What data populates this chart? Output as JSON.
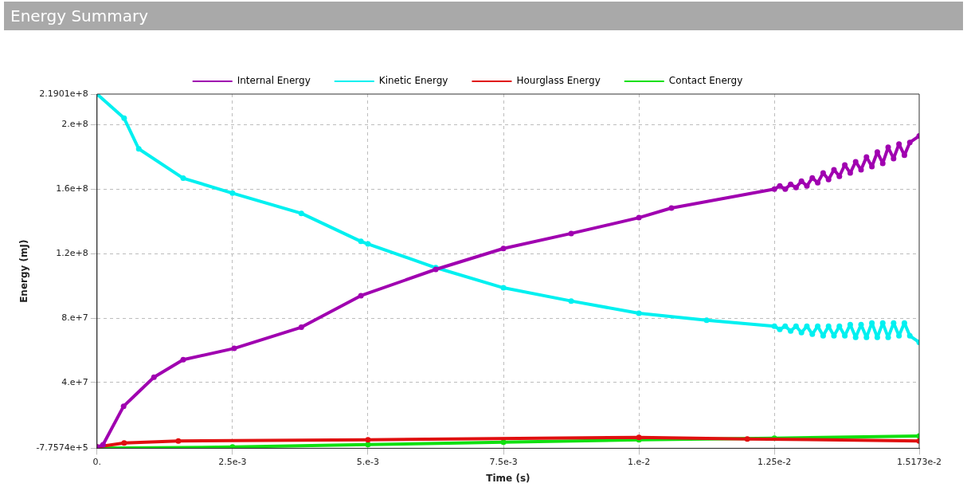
{
  "chart_data": {
    "type": "line",
    "title": "Energy Summary",
    "xlabel": "Time (s)",
    "ylabel": "Energy (mJ)",
    "xlim": [
      0,
      0.015173
    ],
    "ylim": [
      -775740,
      219010000
    ],
    "xticks": [
      {
        "value": 0,
        "label": "0."
      },
      {
        "value": 0.0025,
        "label": "2.5e-3"
      },
      {
        "value": 0.005,
        "label": "5.e-3"
      },
      {
        "value": 0.0075,
        "label": "7.5e-3"
      },
      {
        "value": 0.01,
        "label": "1.e-2"
      },
      {
        "value": 0.0125,
        "label": "1.25e-2"
      },
      {
        "value": 0.015173,
        "label": "1.5173e-2"
      }
    ],
    "yticks": [
      {
        "value": -775740,
        "label": "-7.7574e+5"
      },
      {
        "value": 40000000,
        "label": "4.e+7"
      },
      {
        "value": 80000000,
        "label": "8.e+7"
      },
      {
        "value": 120000000,
        "label": "1.2e+8"
      },
      {
        "value": 160000000,
        "label": "1.6e+8"
      },
      {
        "value": 200000000,
        "label": "2.e+8"
      },
      {
        "value": 219010000,
        "label": "2.1901e+8"
      }
    ],
    "grid": true,
    "legend": "top",
    "marker": "circle",
    "line_style": "solid",
    "series": [
      {
        "name": "Internal Energy",
        "color": "#a000b0",
        "x": [
          0,
          0.00011,
          0.00049,
          0.00105,
          0.00159,
          0.00253,
          0.00377,
          0.00487,
          0.00625,
          0.0075,
          0.00875,
          0.01,
          0.0106,
          0.0125,
          0.0126,
          0.0127,
          0.0128,
          0.0129,
          0.013,
          0.0131,
          0.0132,
          0.0133,
          0.0134,
          0.0135,
          0.0136,
          0.0137,
          0.0138,
          0.0139,
          0.014,
          0.0141,
          0.0142,
          0.0143,
          0.0144,
          0.0145,
          0.0146,
          0.0147,
          0.0148,
          0.0149,
          0.015,
          0.015173
        ],
        "values": [
          0,
          1400000,
          25300000,
          43300000,
          54200000,
          61200000,
          74300000,
          93900000,
          110200000,
          123200000,
          132500000,
          142300000,
          148300000,
          160000000,
          162000000,
          160000000,
          163000000,
          161000000,
          165000000,
          162000000,
          167000000,
          164000000,
          170000000,
          166000000,
          172000000,
          168000000,
          175000000,
          170000000,
          177000000,
          172000000,
          180000000,
          174000000,
          183000000,
          176000000,
          186000000,
          179000000,
          188000000,
          181000000,
          189000000,
          193000000
        ]
      },
      {
        "name": "Kinetic Energy",
        "color": "#00f0f0",
        "x": [
          0,
          0.0005,
          0.00077,
          0.00159,
          0.0025,
          0.00377,
          0.00487,
          0.005,
          0.00625,
          0.0075,
          0.00875,
          0.01,
          0.01125,
          0.0125,
          0.0126,
          0.0127,
          0.0128,
          0.0129,
          0.013,
          0.0131,
          0.0132,
          0.0133,
          0.0134,
          0.0135,
          0.0136,
          0.0137,
          0.0138,
          0.0139,
          0.014,
          0.0141,
          0.0142,
          0.0143,
          0.0144,
          0.0145,
          0.0146,
          0.0147,
          0.0148,
          0.0149,
          0.015,
          0.015173
        ],
        "values": [
          219010000,
          204000000,
          185000000,
          166800000,
          157500000,
          145000000,
          127600000,
          126000000,
          111300000,
          98800000,
          90600000,
          83000000,
          78700000,
          75000000,
          73000000,
          75000000,
          72000000,
          75000000,
          71000000,
          75000000,
          70000000,
          75000000,
          69000000,
          75000000,
          69000000,
          75000000,
          69000000,
          76000000,
          68000000,
          76000000,
          68000000,
          77000000,
          68000000,
          77000000,
          68000000,
          77000000,
          69000000,
          77000000,
          69000000,
          65000000
        ]
      },
      {
        "name": "Hourglass Energy",
        "color": "#e01010",
        "x": [
          0,
          0.0005,
          0.0015,
          0.005,
          0.01,
          0.012,
          0.015173
        ],
        "values": [
          0,
          2500000,
          3800000,
          4500000,
          6000000,
          5000000,
          3800000
        ]
      },
      {
        "name": "Contact Energy",
        "color": "#10e010",
        "x": [
          0,
          0.0025,
          0.005,
          0.0075,
          0.01,
          0.0125,
          0.015173
        ],
        "values": [
          -700000,
          0,
          1500000,
          3000000,
          4500000,
          5500000,
          6800000
        ]
      }
    ]
  }
}
